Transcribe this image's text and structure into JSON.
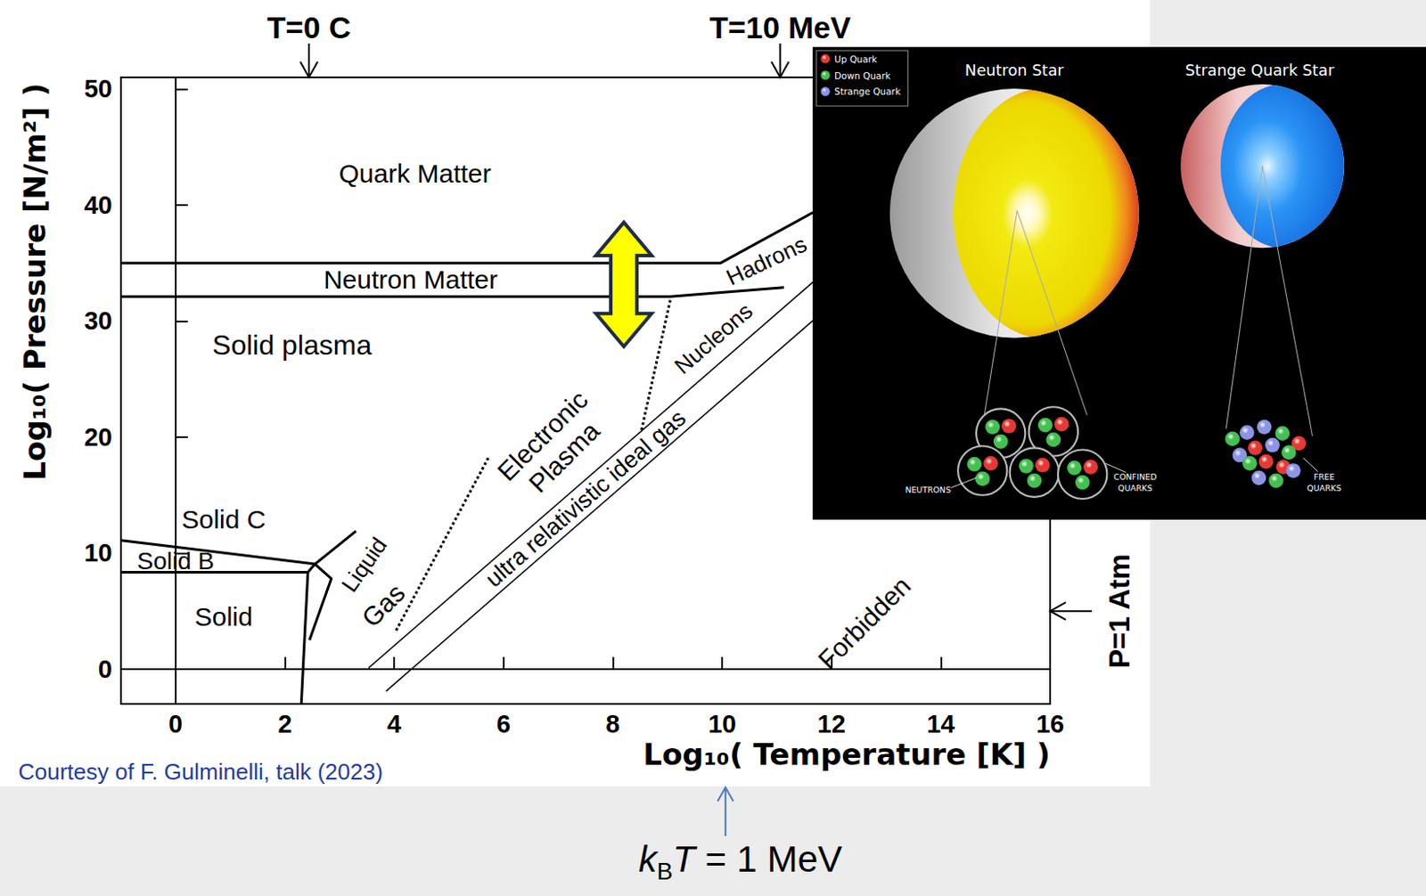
{
  "chart_data": {
    "type": "line",
    "x_label": "Log₁₀( Temperature [K] )",
    "y_label": "Log₁₀( Pressure [N/m²] )",
    "xlim": [
      -1,
      16
    ],
    "xticks": [
      0,
      2,
      4,
      6,
      8,
      10,
      12,
      14,
      16
    ],
    "ylim": [
      -3,
      51
    ],
    "yticks": [
      0,
      10,
      20,
      30,
      40,
      50
    ],
    "grid": false,
    "series": [
      {
        "x": [
          -1,
          9.97,
          11.66
        ],
        "values": [
          35,
          35,
          39.35
        ],
        "color": "#000000",
        "line_style": "solid"
      },
      {
        "x": [
          -1,
          9.05,
          11.13
        ],
        "values": [
          32.1,
          32.1,
          32.9
        ],
        "color": "#000000",
        "line_style": "solid"
      },
      {
        "x": [
          9.05,
          8.52
        ],
        "values": [
          31.8,
          20.5
        ],
        "color": "#000000",
        "line_style": "dotted"
      },
      {
        "x": [
          5.72,
          4.02
        ],
        "values": [
          18.2,
          3.2
        ],
        "color": "#000000",
        "line_style": "dotted"
      },
      {
        "x": [
          3.53,
          11.66
        ],
        "values": [
          0.1,
          33.35
        ],
        "color": "#000000",
        "line_style": "thin"
      },
      {
        "x": [
          3.85,
          11.66
        ],
        "values": [
          -1.9,
          30.04
        ],
        "color": "#000000",
        "line_style": "thin"
      },
      {
        "x": [
          -1,
          2.55
        ],
        "values": [
          11.1,
          9.05
        ],
        "color": "#000000",
        "line_style": "solid"
      },
      {
        "x": [
          -1,
          2.42,
          2.55
        ],
        "values": [
          8.35,
          8.35,
          9.05
        ],
        "color": "#000000",
        "line_style": "solid"
      },
      {
        "x": [
          2.3,
          2.42
        ],
        "values": [
          -3,
          8.35
        ],
        "color": "#000000",
        "line_style": "solid"
      },
      {
        "x": [
          2.55,
          3.3
        ],
        "values": [
          9.05,
          11.9
        ],
        "color": "#000000",
        "line_style": "solid"
      },
      {
        "x": [
          2.45,
          2.85,
          2.55
        ],
        "values": [
          2.5,
          7.8,
          9.05
        ],
        "color": "#000000",
        "line_style": "solid"
      }
    ],
    "region_labels": [
      {
        "text": "Quark Matter",
        "x": 4.38,
        "y": 42.7
      },
      {
        "text": "Neutron Matter",
        "x": 4.3,
        "y": 33.55
      },
      {
        "text": "Solid plasma",
        "x": 2.13,
        "y": 27.9
      },
      {
        "text": "Solid C",
        "x": 0.88,
        "y": 12.9
      },
      {
        "text": "Solid B",
        "x": 0.0,
        "y": 9.3
      },
      {
        "text": "Solid",
        "x": 0.88,
        "y": 4.5
      },
      {
        "text": "Liquid",
        "x": 3.45,
        "y": 9.0
      },
      {
        "text": "Gas",
        "x": 3.8,
        "y": 5.5
      },
      {
        "text": "Electronic Plasma",
        "x": 6.91,
        "y": 19.2
      },
      {
        "text": "ultra relativistic ideal gas",
        "x": 7.5,
        "y": 14.7
      },
      {
        "text": "Nucleons",
        "x": 9.84,
        "y": 28.5
      },
      {
        "text": "Hadrons",
        "x": 10.81,
        "y": 35.2
      },
      {
        "text": "Forbidden",
        "x": 12.6,
        "y": 4
      }
    ],
    "annotations": {
      "top_markers": [
        {
          "text": "T=0 C",
          "x": 2.44
        },
        {
          "text": "T=10 MeV",
          "x": 11.06
        }
      ],
      "right_markers": [
        {
          "text": "P=1 Atm",
          "y": 5
        }
      ],
      "bottom_marker": {
        "x": 10.06,
        "color": "#4a7ebb",
        "parts": [
          {
            "text": "k",
            "style": "italic"
          },
          {
            "text": "B",
            "style": "sub"
          },
          {
            "text": "T",
            "style": "italic"
          },
          {
            "text": " = 1 MeV",
            "style": "normal"
          }
        ]
      },
      "double_arrow": {
        "x": 8.2,
        "y": [
          27.8,
          38.5
        ],
        "color": "#ffff00"
      },
      "credit": {
        "text": "Courtesy of F. Gulminelli, talk (2023)",
        "color": "#1f3d9e"
      }
    }
  },
  "inset": {
    "legend": [
      {
        "label": "Up Quark",
        "color": "#e53935"
      },
      {
        "label": "Down Quark",
        "color": "#43c150"
      },
      {
        "label": "Strange Quark",
        "color": "#8c94e6"
      }
    ],
    "panels": [
      {
        "title": "Neutron Star",
        "labels": [
          "NEUTRONS",
          "CONFINED QUARKS"
        ]
      },
      {
        "title": "Strange Quark Star",
        "labels": [
          "FREE QUARKS"
        ]
      }
    ]
  }
}
